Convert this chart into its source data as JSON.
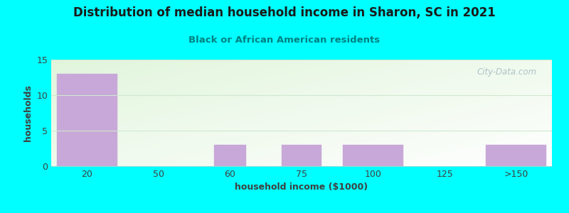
{
  "title": "Distribution of median household income in Sharon, SC in 2021",
  "subtitle": "Black or African American residents",
  "xlabel": "household income ($1000)",
  "ylabel": "households",
  "background_color": "#00FFFF",
  "bar_color": "#c8a8d8",
  "bar_edge_color": "#c8a8d8",
  "categories": [
    "20",
    "50",
    "60",
    "75",
    "100",
    "125",
    ">150"
  ],
  "values": [
    13,
    0,
    3,
    3,
    3,
    0,
    3
  ],
  "ylim": [
    0,
    15
  ],
  "yticks": [
    0,
    5,
    10,
    15
  ],
  "title_color": "#1a1a1a",
  "subtitle_color": "#008080",
  "axis_label_color": "#404040",
  "tick_color": "#404040",
  "watermark": "City-Data.com",
  "watermark_color": "#a0b8c0",
  "grid_color": "#d0e8d0"
}
